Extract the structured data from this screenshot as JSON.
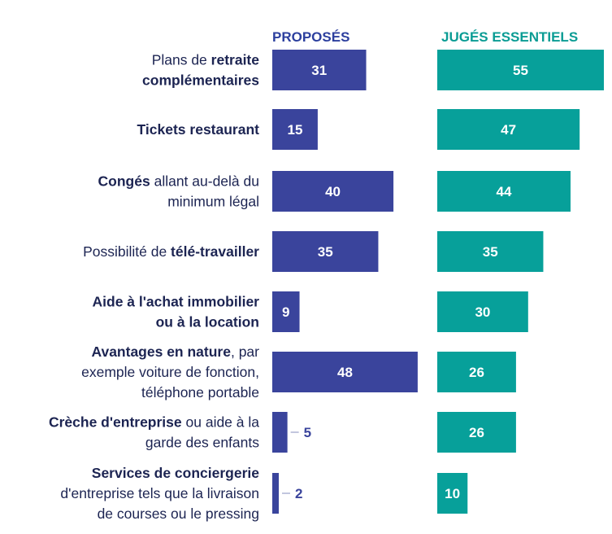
{
  "chart_data": {
    "type": "bar",
    "orientation": "horizontal",
    "grid": false,
    "xlim": [
      0,
      55
    ],
    "headers": [
      "PROPOSÉS",
      "JUGÉS ESSENTIELS"
    ],
    "colors": {
      "proposes": "#3a449c",
      "essentiels": "#07a09a",
      "label": "#1c2452",
      "header_proposes": "#2c3f9e",
      "header_essentiels": "#0a9c94"
    },
    "categories": [
      {
        "lines": [
          [
            {
              "t": "Plans de ",
              "b": false
            },
            {
              "t": "retraite",
              "b": true
            }
          ],
          [
            {
              "t": "complémentaires",
              "b": true
            }
          ]
        ]
      },
      {
        "lines": [
          [
            {
              "t": "Tickets restaurant",
              "b": true
            }
          ]
        ]
      },
      {
        "lines": [
          [
            {
              "t": "Congés",
              "b": true
            },
            {
              "t": " allant au-delà du",
              "b": false
            }
          ],
          [
            {
              "t": "minimum légal",
              "b": false
            }
          ]
        ]
      },
      {
        "lines": [
          [
            {
              "t": "Possibilité de ",
              "b": false
            },
            {
              "t": "télé-travailler",
              "b": true
            }
          ]
        ]
      },
      {
        "lines": [
          [
            {
              "t": "Aide à l'achat immobilier",
              "b": true
            }
          ],
          [
            {
              "t": "ou à la location",
              "b": true
            }
          ]
        ]
      },
      {
        "lines": [
          [
            {
              "t": "Avantages en nature",
              "b": true
            },
            {
              "t": ", par",
              "b": false
            }
          ],
          [
            {
              "t": "exemple voiture de fonction,",
              "b": false
            }
          ],
          [
            {
              "t": "téléphone portable",
              "b": false
            }
          ]
        ]
      },
      {
        "lines": [
          [
            {
              "t": "Crèche d'entreprise",
              "b": true
            },
            {
              "t": " ou aide à la",
              "b": false
            }
          ],
          [
            {
              "t": "garde des enfants",
              "b": false
            }
          ]
        ]
      },
      {
        "lines": [
          [
            {
              "t": "Services de conciergerie",
              "b": true
            }
          ],
          [
            {
              "t": "d'entreprise tels que la livraison",
              "b": false
            }
          ],
          [
            {
              "t": "de courses ou le pressing",
              "b": false
            }
          ]
        ]
      }
    ],
    "series": [
      {
        "values": [
          31,
          15,
          40,
          35,
          9,
          48,
          5,
          2
        ]
      },
      {
        "values": [
          55,
          47,
          44,
          35,
          30,
          26,
          26,
          10
        ]
      }
    ]
  }
}
